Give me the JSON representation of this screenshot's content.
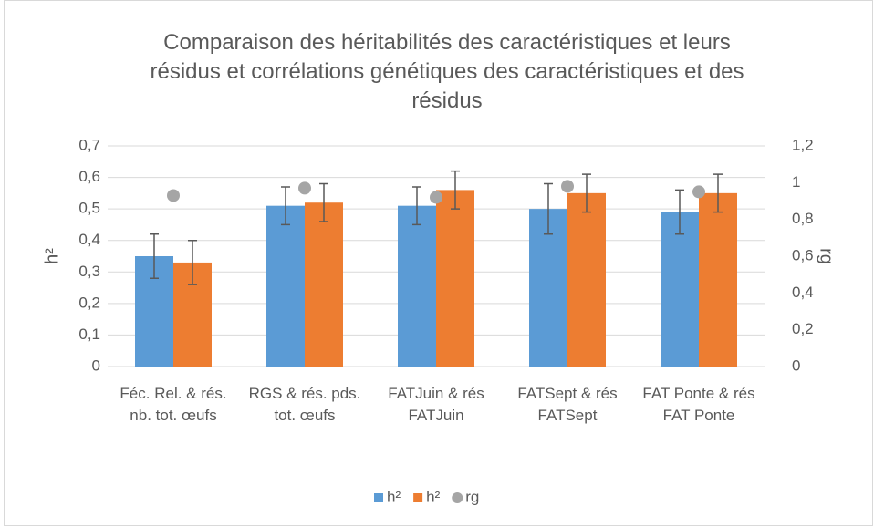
{
  "chart_data": {
    "type": "bar",
    "title": "Comparaison des héritabilités des caractéristiques et leurs résidus et corrélations génétiques des caractéristiques et des résidus",
    "ylabel": "h²",
    "y2label": "rg",
    "categories": [
      "Féc. Rel. & rés. nb. tot. œufs",
      "RGS & rés. pds. tot. œufs",
      "FATJuin & rés FATJuin",
      "FATSept & rés FATSept",
      "FAT Ponte & rés FAT Ponte"
    ],
    "series": [
      {
        "name": "h²",
        "type": "bar",
        "color": "#5b9bd5",
        "values": [
          0.35,
          0.51,
          0.51,
          0.5,
          0.49
        ],
        "errors": [
          0.07,
          0.06,
          0.06,
          0.08,
          0.07
        ]
      },
      {
        "name": "h²",
        "type": "bar",
        "color": "#ed7d31",
        "values": [
          0.33,
          0.52,
          0.56,
          0.55,
          0.55
        ],
        "errors": [
          0.07,
          0.06,
          0.06,
          0.06,
          0.06
        ]
      },
      {
        "name": "rg",
        "type": "scatter",
        "axis": "y2",
        "color": "#a5a5a5",
        "values": [
          0.93,
          0.97,
          0.92,
          0.98,
          0.95
        ]
      }
    ],
    "ylim": [
      0,
      0.7
    ],
    "yticks": [
      0,
      {
        "value": 0.1,
        "label": "0,1"
      },
      {
        "value": 0.2,
        "label": "0,2"
      },
      {
        "value": 0.3,
        "label": "0,3"
      },
      {
        "value": 0.4,
        "label": "0,4"
      },
      {
        "value": 0.5,
        "label": "0,5"
      },
      {
        "value": 0.6,
        "label": "0,6"
      },
      {
        "value": 0.7,
        "label": "0,7"
      }
    ],
    "y2lim": [
      0,
      1.2
    ],
    "y2ticks": [
      0,
      {
        "value": 0.2,
        "label": "0,2"
      },
      {
        "value": 0.4,
        "label": "0,4"
      },
      {
        "value": 0.6,
        "label": "0,6"
      },
      {
        "value": 0.8,
        "label": "0,8"
      },
      1,
      {
        "value": 1.2,
        "label": "1,2"
      }
    ],
    "grid": true,
    "legend": "bottom"
  }
}
